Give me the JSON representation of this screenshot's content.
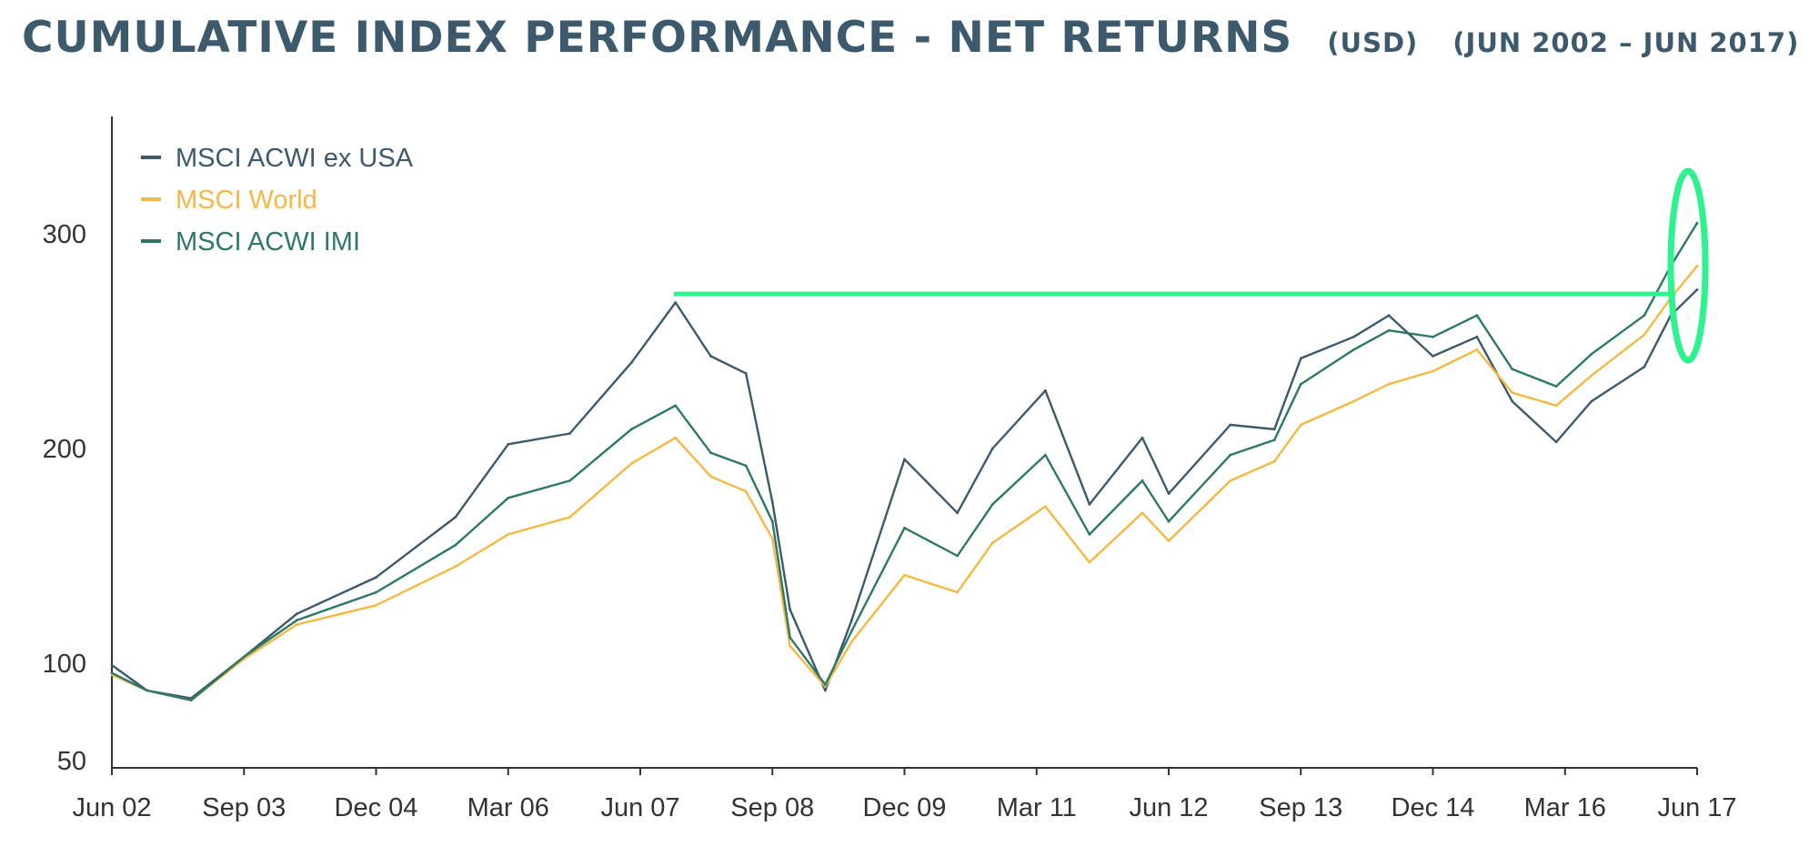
{
  "header": {
    "title": "CUMULATIVE INDEX PERFORMANCE - NET RETURNS",
    "currency": "(USD)",
    "period": "(JUN 2002 – JUN 2017)"
  },
  "chart_data": {
    "type": "line",
    "title": "CUMULATIVE INDEX PERFORMANCE - NET RETURNS",
    "xlabel": "",
    "ylabel": "",
    "x_ticks": [
      "Jun 02",
      "Sep 03",
      "Dec 04",
      "Mar 06",
      "Jun 07",
      "Sep 08",
      "Dec 09",
      "Mar 11",
      "Jun 12",
      "Sep 13",
      "Dec 14",
      "Mar 16",
      "Jun 17"
    ],
    "y_ticks": [
      50,
      100,
      200,
      300
    ],
    "ylim": [
      55,
      350
    ],
    "xlim": [
      "2002-06",
      "2017-07"
    ],
    "grid": false,
    "legend_position": "top-left",
    "x": [
      "2002-06",
      "2002-10",
      "2003-03",
      "2003-09",
      "2004-03",
      "2004-12",
      "2005-09",
      "2006-03",
      "2006-10",
      "2007-05",
      "2007-10",
      "2008-02",
      "2008-06",
      "2008-09",
      "2008-11",
      "2009-03",
      "2009-06",
      "2009-12",
      "2010-06",
      "2010-10",
      "2011-04",
      "2011-09",
      "2012-03",
      "2012-06",
      "2013-01",
      "2013-06",
      "2013-09",
      "2014-03",
      "2014-07",
      "2014-12",
      "2015-05",
      "2015-09",
      "2016-02",
      "2016-06",
      "2016-12",
      "2017-03",
      "2017-06"
    ],
    "series": [
      {
        "name": "MSCI ACWI ex USA",
        "color": "#3d5a6c",
        "values": [
          99,
          86,
          82,
          103,
          123,
          140,
          168,
          202,
          207,
          240,
          268,
          243,
          235,
          175,
          125,
          86,
          120,
          195,
          170,
          200,
          227,
          174,
          205,
          179,
          211,
          209,
          242,
          252,
          262,
          243,
          252,
          222,
          203,
          222,
          238,
          262,
          274
        ]
      },
      {
        "name": "MSCI World",
        "color": "#f3b944",
        "values": [
          94,
          86,
          81,
          102,
          118,
          127,
          145,
          160,
          168,
          193,
          205,
          187,
          180,
          158,
          108,
          88,
          110,
          141,
          133,
          156,
          173,
          147,
          170,
          157,
          185,
          194,
          211,
          222,
          230,
          236,
          246,
          226,
          220,
          234,
          253,
          270,
          285
        ]
      },
      {
        "name": "MSCI ACWI IMI",
        "color": "#2e7866",
        "values": [
          95,
          86,
          81,
          103,
          120,
          133,
          155,
          177,
          185,
          209,
          220,
          198,
          192,
          166,
          112,
          89,
          115,
          163,
          150,
          174,
          197,
          160,
          185,
          166,
          197,
          204,
          230,
          246,
          255,
          252,
          262,
          237,
          229,
          244,
          262,
          285,
          305
        ]
      }
    ]
  },
  "annotations": {
    "reference_line_value": 272,
    "reference_line_color": "#2df28e",
    "highlight_ellipse_color": "#2df28e"
  }
}
